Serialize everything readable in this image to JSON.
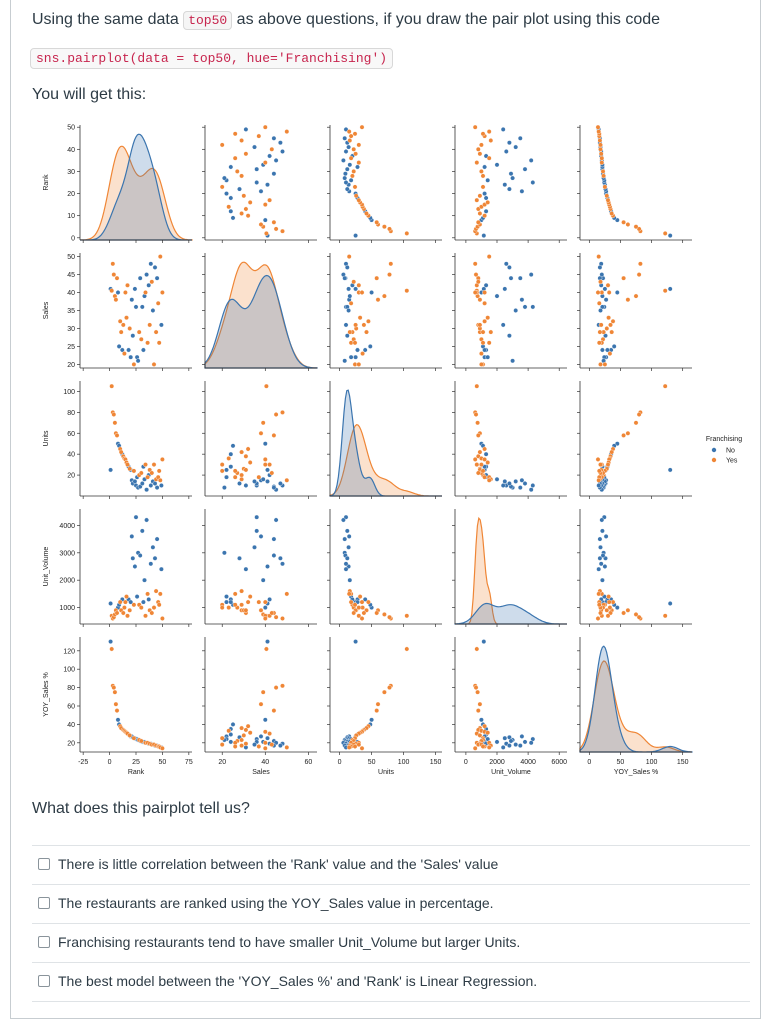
{
  "question": {
    "before": "Using the same data",
    "code": "top50",
    "after": "as above questions, if you draw the pair plot using this code"
  },
  "code_block": "sns.pairplot(data = top50, hue='Franchising')",
  "intro": "You will get this:",
  "chart_data": {
    "type": "pairplot",
    "variables": [
      "Rank",
      "Sales",
      "Units",
      "Unit_Volume",
      "YOY_Sales %"
    ],
    "axes": [
      {
        "xlim": [
          -28,
          78
        ],
        "xticks": [
          -25,
          0,
          25,
          50,
          75
        ],
        "ylim": [
          -1,
          51
        ],
        "yticks": [
          0,
          10,
          20,
          30,
          40,
          50
        ]
      },
      {
        "xlim": [
          12,
          64
        ],
        "xticks": [
          20,
          40,
          60
        ],
        "ylim": [
          19,
          51
        ],
        "yticks": [
          20,
          25,
          30,
          35,
          40,
          45,
          50
        ]
      },
      {
        "xlim": [
          -15,
          160
        ],
        "xticks": [
          0,
          50,
          100,
          150
        ],
        "ylim": [
          0,
          110
        ],
        "yticks": [
          20,
          40,
          60,
          80,
          100
        ]
      },
      {
        "xlim": [
          -700,
          6500
        ],
        "xticks": [
          0,
          2000,
          4000,
          6000
        ],
        "ylim": [
          400,
          4600
        ],
        "yticks": [
          1000,
          2000,
          3000,
          4000
        ]
      },
      {
        "xlim": [
          -15,
          165
        ],
        "xticks": [
          0,
          50,
          100,
          150
        ],
        "ylim": [
          10,
          135
        ],
        "yticks": [
          20,
          40,
          60,
          80,
          100,
          120
        ]
      }
    ],
    "legend_title": "Franchising",
    "series": [
      {
        "name": "No",
        "color": "#3b75af",
        "rows": [
          [
            1,
            41,
            25,
            1150,
            130
          ],
          [
            8,
            40,
            50,
            1000,
            45
          ],
          [
            9,
            25,
            48,
            1100,
            40
          ],
          [
            12,
            24,
            40,
            1300,
            35
          ],
          [
            18,
            24,
            28,
            1300,
            29
          ],
          [
            20,
            22,
            25,
            1200,
            27
          ],
          [
            21,
            38,
            15,
            3600,
            27
          ],
          [
            22,
            28,
            12,
            2800,
            26
          ],
          [
            24,
            41,
            14,
            2500,
            25
          ],
          [
            25,
            36,
            10,
            4300,
            24
          ],
          [
            26,
            22,
            18,
            1400,
            24
          ],
          [
            27,
            21,
            8,
            3000,
            23
          ],
          [
            29,
            44,
            9,
            2900,
            22
          ],
          [
            31,
            36,
            12,
            3800,
            21
          ],
          [
            32,
            24,
            28,
            1200,
            21
          ],
          [
            33,
            39,
            16,
            2000,
            21
          ],
          [
            35,
            45,
            6,
            4200,
            20
          ],
          [
            37,
            42,
            20,
            1300,
            19
          ],
          [
            39,
            48,
            10,
            2600,
            19
          ],
          [
            41,
            35,
            14,
            3200,
            18
          ],
          [
            43,
            47,
            12,
            2800,
            17
          ],
          [
            45,
            44,
            8,
            3500,
            17
          ],
          [
            49,
            31,
            10,
            2400,
            15
          ]
        ]
      },
      {
        "name": "Yes",
        "color": "#ef8636",
        "rows": [
          [
            2,
            40.5,
            105,
            700,
            122
          ],
          [
            3,
            48,
            80,
            600,
            82
          ],
          [
            4,
            45,
            78,
            650,
            80
          ],
          [
            5,
            39,
            70,
            750,
            75
          ],
          [
            6,
            38,
            60,
            900,
            62
          ],
          [
            7,
            44,
            58,
            800,
            55
          ],
          [
            10,
            32,
            45,
            1200,
            38
          ],
          [
            11,
            29,
            42,
            900,
            36
          ],
          [
            13,
            31,
            38,
            800,
            34
          ],
          [
            14,
            23,
            36,
            1000,
            33
          ],
          [
            15,
            40,
            35,
            1200,
            32
          ],
          [
            16,
            33,
            32,
            1400,
            31
          ],
          [
            17,
            42,
            30,
            700,
            30
          ],
          [
            19,
            30,
            26,
            900,
            28
          ],
          [
            23,
            20,
            24,
            1100,
            25
          ],
          [
            28,
            29,
            20,
            1100,
            23
          ],
          [
            30,
            27,
            22,
            1000,
            22
          ],
          [
            34,
            40,
            30,
            700,
            20
          ],
          [
            36,
            26,
            18,
            1500,
            20
          ],
          [
            38,
            31,
            25,
            900,
            19
          ],
          [
            40,
            43,
            22,
            800,
            18
          ],
          [
            42,
            20,
            30,
            1000,
            18
          ],
          [
            44,
            29,
            16,
            1600,
            17
          ],
          [
            46,
            37,
            18,
            1200,
            16
          ],
          [
            47,
            26,
            24,
            1100,
            16
          ],
          [
            48,
            50,
            15,
            1500,
            15
          ],
          [
            50,
            40,
            35,
            600,
            14
          ]
        ]
      }
    ]
  },
  "followup": "What does this pairplot tell us?",
  "options": [
    "There is little correlation between the 'Rank' value and the 'Sales' value",
    "The restaurants are ranked using the YOY_Sales value in percentage.",
    "Franchising restaurants tend to have smaller Unit_Volume but larger Units.",
    "The best model between the 'YOY_Sales %' and 'Rank' is Linear Regression."
  ]
}
